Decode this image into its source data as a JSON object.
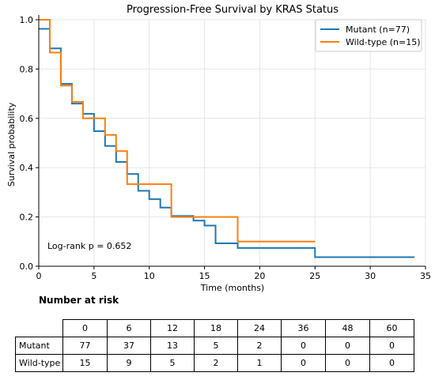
{
  "chart_data": {
    "type": "line",
    "title": "Progression-Free Survival by KRAS Status",
    "xlabel": "Time (months)",
    "ylabel": "Survival probability",
    "xlim": [
      0,
      35
    ],
    "ylim": [
      0,
      1.0
    ],
    "xticks": [
      0,
      5,
      10,
      15,
      20,
      25,
      30,
      35
    ],
    "yticks": [
      0.0,
      0.2,
      0.4,
      0.6,
      0.8,
      1.0
    ],
    "grid": true,
    "legend_position": "top-right",
    "annotation": "Log-rank p = 0.652",
    "series": [
      {
        "name": "Mutant (n=77)",
        "color": "#1f77b4",
        "step": "post",
        "x": [
          0,
          1,
          2,
          3,
          4,
          5,
          6,
          7,
          8,
          9,
          10,
          11,
          12,
          14,
          15,
          16,
          18,
          25,
          34
        ],
        "y": [
          0.963,
          0.884,
          0.74,
          0.66,
          0.618,
          0.548,
          0.488,
          0.423,
          0.374,
          0.306,
          0.272,
          0.238,
          0.204,
          0.185,
          0.165,
          0.093,
          0.074,
          0.037,
          0.037
        ]
      },
      {
        "name": "Wild-type (n=15)",
        "color": "#ff7f0e",
        "step": "post",
        "x": [
          0,
          1,
          2,
          3,
          4,
          5,
          6,
          7,
          8,
          12,
          18,
          25
        ],
        "y": [
          1.0,
          0.867,
          0.733,
          0.667,
          0.6,
          0.6,
          0.533,
          0.467,
          0.333,
          0.2,
          0.1,
          0.1
        ]
      }
    ]
  },
  "risk_table": {
    "title": "Number at risk",
    "times": [
      "0",
      "6",
      "12",
      "18",
      "24",
      "36",
      "48",
      "60"
    ],
    "rows": [
      {
        "label": "Mutant",
        "values": [
          "77",
          "37",
          "13",
          "5",
          "2",
          "0",
          "0",
          "0"
        ]
      },
      {
        "label": "Wild-type",
        "values": [
          "15",
          "9",
          "5",
          "2",
          "1",
          "0",
          "0",
          "0"
        ]
      }
    ]
  }
}
